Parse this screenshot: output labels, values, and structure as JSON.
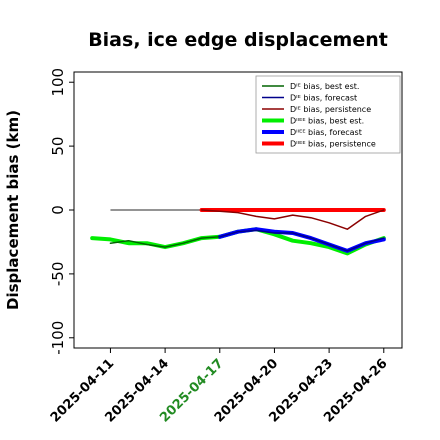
{
  "chart_data": {
    "type": "line",
    "title": "Bias, ice edge displacement",
    "xlabel": "",
    "ylabel": "Displacement bias (km)",
    "ylim": [
      -108,
      108
    ],
    "yticks": [
      -100,
      -50,
      0,
      50,
      100
    ],
    "xlim": [
      "2025-04-09",
      "2025-04-27"
    ],
    "xticks": [
      {
        "date": "2025-04-11",
        "label": "2025-04-11",
        "color": "#000000"
      },
      {
        "date": "2025-04-14",
        "label": "2025-04-14",
        "color": "#000000"
      },
      {
        "date": "2025-04-17",
        "label": "2025-04-17",
        "color": "#228B22"
      },
      {
        "date": "2025-04-20",
        "label": "2025-04-20",
        "color": "#000000"
      },
      {
        "date": "2025-04-23",
        "label": "2025-04-23",
        "color": "#000000"
      },
      {
        "date": "2025-04-26",
        "label": "2025-04-26",
        "color": "#000000"
      }
    ],
    "reference_line": {
      "y": 0,
      "from": "2025-04-11",
      "to": "2025-04-26",
      "color": "#555555"
    },
    "legend_position": "top-right",
    "series": [
      {
        "name": "DᴵᴱbIas, best est.",
        "legend_label": "Dᴵᴱ bias, best est.",
        "color": "#006400",
        "width": 1.5,
        "x": [
          "2025-04-11",
          "2025-04-12",
          "2025-04-13",
          "2025-04-14",
          "2025-04-15",
          "2025-04-16",
          "2025-04-17"
        ],
        "y": [
          -26,
          -24,
          -27,
          -29,
          -26,
          -22,
          -21
        ]
      },
      {
        "name": "forecast",
        "legend_label": "Dᴵᴱ bias, forecast",
        "color": "#00008B",
        "width": 1.5,
        "x": [
          "2025-04-17",
          "2025-04-18",
          "2025-04-19",
          "2025-04-20",
          "2025-04-21",
          "2025-04-22",
          "2025-04-23",
          "2025-04-24",
          "2025-04-25",
          "2025-04-26"
        ],
        "y": [
          -21,
          -17,
          -16,
          -18,
          -18,
          -22,
          -27,
          -32,
          -26,
          -22
        ]
      },
      {
        "name": "persistence",
        "legend_label": "Dᴵᴱ bias, persistence",
        "color": "#8B0000",
        "width": 1.5,
        "x": [
          "2025-04-16",
          "2025-04-17",
          "2025-04-18",
          "2025-04-19",
          "2025-04-20",
          "2025-04-21",
          "2025-04-22",
          "2025-04-23",
          "2025-04-24",
          "2025-04-25",
          "2025-04-26"
        ],
        "y": [
          0,
          -1,
          -2,
          -5,
          -7,
          -4,
          -6,
          -10,
          -15,
          -5,
          0
        ]
      },
      {
        "name": "IIEE best est.",
        "legend_label": "Dᴵᴵᴱᴱ bias, best est.",
        "color": "#00EE00",
        "width": 4,
        "x": [
          "2025-04-10",
          "2025-04-11",
          "2025-04-12",
          "2025-04-13",
          "2025-04-14",
          "2025-04-15",
          "2025-04-16",
          "2025-04-17",
          "2025-04-18",
          "2025-04-19",
          "2025-04-20",
          "2025-04-21",
          "2025-04-22",
          "2025-04-23",
          "2025-04-24",
          "2025-04-25",
          "2025-04-26"
        ],
        "y": [
          -22,
          -23,
          -26,
          -26,
          -29,
          -26,
          -22,
          -21,
          -17,
          -15,
          -19,
          -24,
          -26,
          -29,
          -34,
          -27,
          -22
        ]
      },
      {
        "name": "IIEE forecast",
        "legend_label": "Dᴵᴵᴱᴱ bias, forecast",
        "color": "#0000FF",
        "width": 4,
        "x": [
          "2025-04-17",
          "2025-04-18",
          "2025-04-19",
          "2025-04-20",
          "2025-04-21",
          "2025-04-22",
          "2025-04-23",
          "2025-04-24",
          "2025-04-25",
          "2025-04-26"
        ],
        "y": [
          -21,
          -17,
          -15,
          -17,
          -18,
          -22,
          -27,
          -32,
          -26,
          -23
        ]
      },
      {
        "name": "IIEE persistence",
        "legend_label": "Dᴵᴵᴱᴱ bias, persistence",
        "color": "#FF0000",
        "width": 4,
        "x": [
          "2025-04-16",
          "2025-04-26"
        ],
        "y": [
          0,
          0
        ]
      }
    ]
  }
}
